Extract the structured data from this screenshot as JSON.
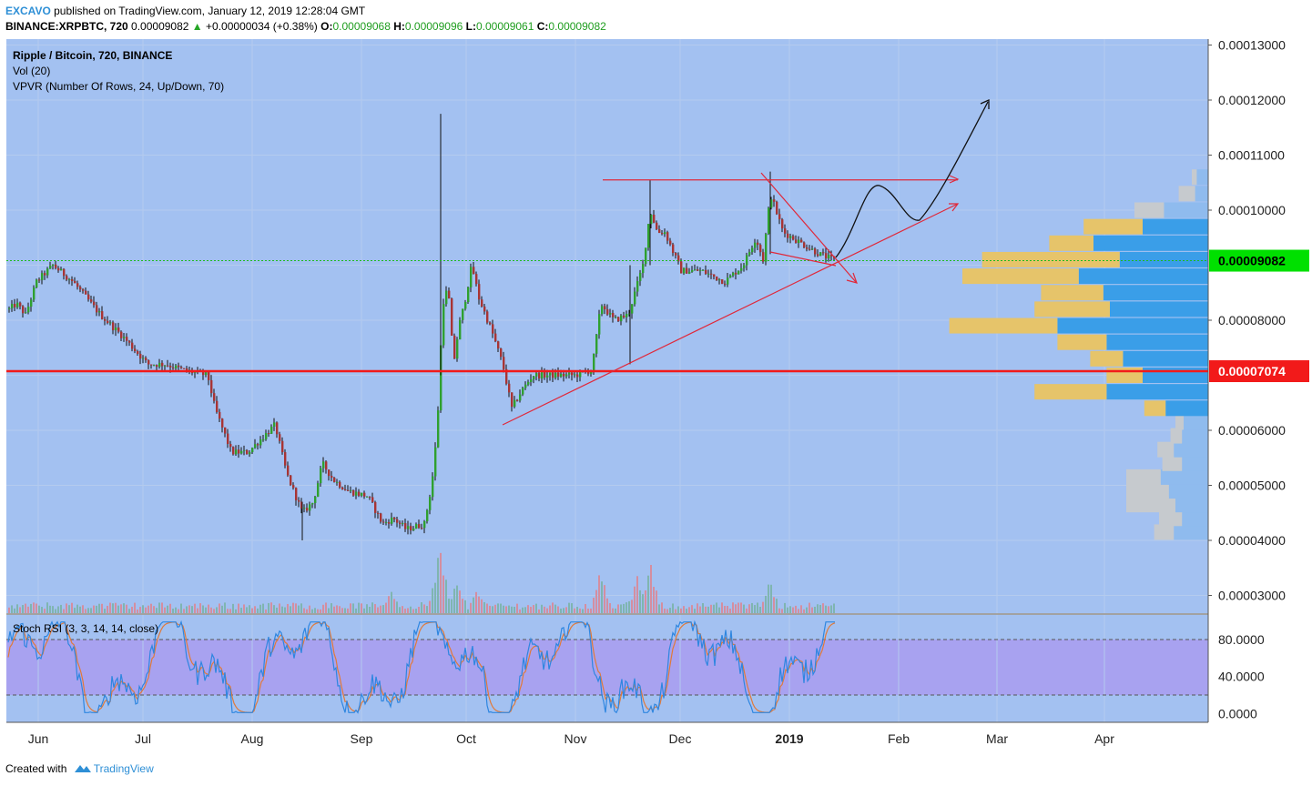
{
  "header": {
    "author": "EXCAVO",
    "published": " published on TradingView.com, January 12, 2019 12:28:04 GMT",
    "symbol": "BINANCE:XRPBTC, 720",
    "last": "0.00009082",
    "change": "+0.00000034 (+0.38%)",
    "o_label": "O:",
    "o": "0.00009068",
    "h_label": "H:",
    "h": "0.00009096",
    "l_label": "L:",
    "l": "0.00009061",
    "c_label": "C:",
    "c": "0.00009082"
  },
  "legend": {
    "main": "Ripple / Bitcoin, 720, BINANCE",
    "vol": "Vol (20)",
    "vpvr": "VPVR (Number Of Rows, 24, Up/Down, 70)",
    "stoch": "Stoch RSI (3, 3, 14, 14, close)"
  },
  "footer": {
    "created": "Created with",
    "brand": "TradingView"
  },
  "colors": {
    "background": "#a3c1f1",
    "grid": "#b4cbee",
    "up": "#2fa02f",
    "down": "#a83434",
    "support_line": "#f21a1a",
    "last_price_tag": "#00e000",
    "stoch_band": "#a99cf0",
    "k_line": "#2e86e0",
    "d_line": "#e07a3a",
    "vp_up": "#3a9ee8",
    "vp_down": "#e6c46a",
    "vp_up_far": "#8fbbee",
    "vp_down_far": "#c6cace"
  },
  "chart_data": [
    {
      "type": "candlestick",
      "title": "Ripple / Bitcoin, 720, BINANCE",
      "x_ticks": [
        "Jun",
        "Jul",
        "Aug",
        "Sep",
        "Oct",
        "Nov",
        "Dec",
        "2019",
        "Feb",
        "Mar",
        "Apr"
      ],
      "y_ticks": [
        "0.00013000",
        "0.00012000",
        "0.00011000",
        "0.00010000",
        "0.00008000",
        "0.00006000",
        "0.00005000",
        "0.00004000",
        "0.00003000"
      ],
      "ylim": [
        2.65e-05,
        0.000131
      ],
      "price_path": [
        [
          0,
          8.2e-05
        ],
        [
          8,
          8.3e-05
        ],
        [
          18,
          8.1e-05
        ],
        [
          30,
          8.7e-05
        ],
        [
          48,
          9e-05
        ],
        [
          70,
          8.7e-05
        ],
        [
          100,
          8.1e-05
        ],
        [
          125,
          7.7e-05
        ],
        [
          152,
          7.2e-05
        ],
        [
          172,
          7.2e-05
        ],
        [
          190,
          7.1e-05
        ],
        [
          218,
          7e-05
        ],
        [
          226,
          6.4e-05
        ],
        [
          244,
          5.6e-05
        ],
        [
          262,
          5.6e-05
        ],
        [
          280,
          5.9e-05
        ],
        [
          292,
          6.1e-05
        ],
        [
          305,
          5.2e-05
        ],
        [
          322,
          4.5e-05
        ],
        [
          334,
          4.7e-05
        ],
        [
          344,
          5.4e-05
        ],
        [
          356,
          5.1e-05
        ],
        [
          372,
          4.9e-05
        ],
        [
          394,
          4.8e-05
        ],
        [
          410,
          4.3e-05
        ],
        [
          422,
          4.4e-05
        ],
        [
          436,
          4.2e-05
        ],
        [
          456,
          4.3e-05
        ],
        [
          464,
          5e-05
        ],
        [
          470,
          6e-05
        ],
        [
          476,
          8.3e-05
        ],
        [
          482,
          8.6e-05
        ],
        [
          488,
          7.2e-05
        ],
        [
          494,
          7.9e-05
        ],
        [
          500,
          8.3e-05
        ],
        [
          508,
          9e-05
        ],
        [
          516,
          8.4e-05
        ],
        [
          530,
          7.8e-05
        ],
        [
          542,
          7.2e-05
        ],
        [
          552,
          6.4e-05
        ],
        [
          562,
          6.7e-05
        ],
        [
          575,
          7e-05
        ],
        [
          596,
          7e-05
        ],
        [
          622,
          7e-05
        ],
        [
          640,
          7.1e-05
        ],
        [
          650,
          8.3e-05
        ],
        [
          664,
          8e-05
        ],
        [
          680,
          8.1e-05
        ],
        [
          696,
          9e-05
        ],
        [
          704,
          0.0001
        ],
        [
          712,
          9.6e-05
        ],
        [
          720,
          9.6e-05
        ],
        [
          738,
          8.9e-05
        ],
        [
          760,
          8.9e-05
        ],
        [
          786,
          8.7e-05
        ],
        [
          806,
          9e-05
        ],
        [
          820,
          9.5e-05
        ],
        [
          828,
          9.1e-05
        ],
        [
          836,
          0.000103
        ],
        [
          850,
          9.6e-05
        ],
        [
          870,
          9.4e-05
        ],
        [
          890,
          9.2e-05
        ],
        [
          908,
          9.08e-05
        ]
      ],
      "annotations": {
        "resistance_level": 0.0001055,
        "support_level": 7.074e-05,
        "current_price_line": 9.082e-05,
        "price_tags": [
          "0.00009082",
          "0.00007074"
        ]
      }
    },
    {
      "type": "bar",
      "title": "Vol (20)",
      "spikes": [
        [
          474,
          1.0
        ],
        [
          470,
          0.55
        ],
        [
          492,
          0.35
        ],
        [
          650,
          0.55
        ],
        [
          704,
          0.65
        ],
        [
          690,
          0.45
        ],
        [
          836,
          0.4
        ],
        [
          515,
          0.3
        ],
        [
          420,
          0.25
        ]
      ]
    },
    {
      "type": "histogram",
      "title": "VPVR (Number Of Rows, 24, Up/Down, 70)",
      "rows": [
        {
          "price": 4.15e-05,
          "up": 1.05e-06,
          "down": 6e-07
        },
        {
          "price": 4.4e-05,
          "up": 8e-07,
          "down": 7e-07
        },
        {
          "price": 4.65e-05,
          "up": 1e-06,
          "down": 1.5e-06
        },
        {
          "price": 4.9e-05,
          "up": 1.2e-06,
          "down": 1.3e-06
        },
        {
          "price": 5.15e-05,
          "up": 1.45e-06,
          "down": 1.05e-06
        },
        {
          "price": 5.4e-05,
          "up": 8e-07,
          "down": 6e-07
        },
        {
          "price": 5.65e-05,
          "up": 1.05e-06,
          "down": 5e-07
        },
        {
          "price": 5.9e-05,
          "up": 8e-07,
          "down": 3.5e-07
        },
        {
          "price": 6.15e-05,
          "up": 7.5e-07,
          "down": 2.5e-07
        },
        {
          "price": 6.4e-05,
          "up": 1.3e-06,
          "down": 6.5e-07
        },
        {
          "price": 6.7e-05,
          "up": 3.1e-06,
          "down": 2.2e-06
        },
        {
          "price": 7e-05,
          "up": 2e-06,
          "down": 1.1e-06
        },
        {
          "price": 7.3e-05,
          "up": 2.6e-06,
          "down": 1e-06
        },
        {
          "price": 7.6e-05,
          "up": 3.1e-06,
          "down": 1.5e-06
        },
        {
          "price": 7.9e-05,
          "up": 4.6e-06,
          "down": 3.3e-06
        },
        {
          "price": 8.2e-05,
          "up": 3e-06,
          "down": 2.3e-06
        },
        {
          "price": 8.5e-05,
          "up": 3.2e-06,
          "down": 1.9e-06
        },
        {
          "price": 8.8e-05,
          "up": 3.95e-06,
          "down": 3.55e-06
        },
        {
          "price": 9.1e-05,
          "up": 2.7e-06,
          "down": 4.2e-06
        },
        {
          "price": 9.4e-05,
          "up": 3.5e-06,
          "down": 1.35e-06
        },
        {
          "price": 9.7e-05,
          "up": 2e-06,
          "down": 1.8e-06
        },
        {
          "price": 0.0001,
          "up": 1.35e-06,
          "down": 9e-07
        },
        {
          "price": 0.000103,
          "up": 4e-07,
          "down": 5e-07
        },
        {
          "price": 0.000106,
          "up": 3.5e-07,
          "down": 1.5e-07
        }
      ]
    },
    {
      "type": "line",
      "title": "Stoch RSI (3, 3, 14, 14, close)",
      "y_ticks": [
        "80.0000",
        "40.0000",
        "0.0000"
      ],
      "ylim": [
        -2,
        102
      ],
      "band": [
        20,
        80
      ]
    }
  ]
}
